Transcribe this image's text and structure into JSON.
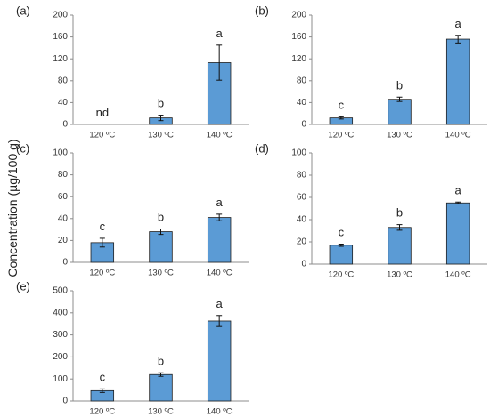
{
  "figure": {
    "ylabel": "Concentration (µg/100 g)",
    "bar_color": "#5b9bd5",
    "bar_edge_color": "#1f1f1f"
  },
  "chart_data": [
    {
      "type": "bar",
      "panel_label": "(a)",
      "categories": [
        "120 ºC",
        "130 ºC",
        "140 ºC"
      ],
      "values": [
        0,
        12,
        113
      ],
      "errors": [
        0,
        5,
        32
      ],
      "annotations": [
        "nd",
        "b",
        "a"
      ],
      "ylim": [
        0,
        200
      ],
      "yticks": [
        0,
        40,
        80,
        120,
        160,
        200
      ],
      "grid": false
    },
    {
      "type": "bar",
      "panel_label": "(b)",
      "categories": [
        "120 ºC",
        "130 ºC",
        "140 ºC"
      ],
      "values": [
        12,
        46,
        156
      ],
      "errors": [
        2,
        4,
        7
      ],
      "annotations": [
        "c",
        "b",
        "a"
      ],
      "ylim": [
        0,
        200
      ],
      "yticks": [
        0,
        40,
        80,
        120,
        160,
        200
      ],
      "grid": false
    },
    {
      "type": "bar",
      "panel_label": "(c)",
      "categories": [
        "120 ºC",
        "130 ºC",
        "140 ºC"
      ],
      "values": [
        18,
        28,
        41
      ],
      "errors": [
        4,
        2.5,
        3
      ],
      "annotations": [
        "c",
        "b",
        "a"
      ],
      "ylim": [
        0,
        100
      ],
      "yticks": [
        0,
        20,
        40,
        60,
        80,
        100
      ],
      "grid": false
    },
    {
      "type": "bar",
      "panel_label": "(d)",
      "categories": [
        "120 ºC",
        "130 ºC",
        "140 ºC"
      ],
      "values": [
        17,
        33,
        55
      ],
      "errors": [
        1,
        2.5,
        0.8
      ],
      "annotations": [
        "c",
        "b",
        "a"
      ],
      "ylim": [
        0,
        100
      ],
      "yticks": [
        0,
        20,
        40,
        60,
        80,
        100
      ],
      "grid": false
    },
    {
      "type": "bar",
      "panel_label": "(e)",
      "categories": [
        "120 ºC",
        "130 ºC",
        "140 ºC"
      ],
      "values": [
        47,
        120,
        363
      ],
      "errors": [
        8,
        8,
        25
      ],
      "annotations": [
        "c",
        "b",
        "a"
      ],
      "ylim": [
        0,
        500
      ],
      "yticks": [
        0,
        100,
        200,
        300,
        400,
        500
      ],
      "grid": false
    }
  ]
}
